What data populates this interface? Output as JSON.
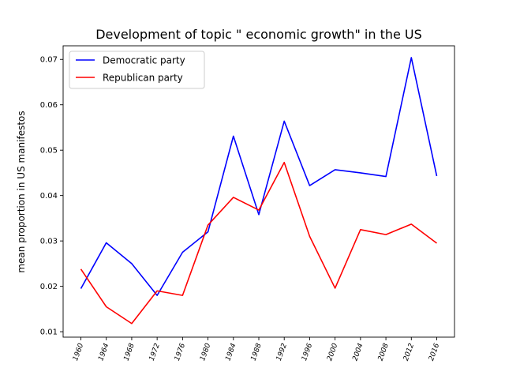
{
  "chart_data": {
    "type": "line",
    "title": "Development of topic \" economic growth\" in the US",
    "xlabel": "",
    "ylabel": "mean proportion in US manifestos",
    "x": [
      "1960",
      "1964",
      "1968",
      "1972",
      "1976",
      "1980",
      "1984",
      "1988",
      "1992",
      "1996",
      "2000",
      "2004",
      "2008",
      "2012",
      "2016"
    ],
    "ylim": [
      0.0088,
      0.073
    ],
    "yticks": [
      "0.01",
      "0.02",
      "0.03",
      "0.04",
      "0.05",
      "0.06",
      "0.07"
    ],
    "grid": false,
    "legend_position": "top-left",
    "series": [
      {
        "name": "Democratic party",
        "color": "#0000ff",
        "values": [
          0.0195,
          0.0296,
          0.025,
          0.018,
          0.0275,
          0.032,
          0.0531,
          0.0358,
          0.0564,
          0.0422,
          0.0457,
          0.045,
          0.0442,
          0.0704,
          0.0443
        ]
      },
      {
        "name": "Republican party",
        "color": "#ff0000",
        "values": [
          0.0238,
          0.0155,
          0.0118,
          0.019,
          0.018,
          0.0335,
          0.0396,
          0.0368,
          0.0473,
          0.031,
          0.0196,
          0.0325,
          0.0314,
          0.0337,
          0.0295
        ]
      }
    ]
  }
}
